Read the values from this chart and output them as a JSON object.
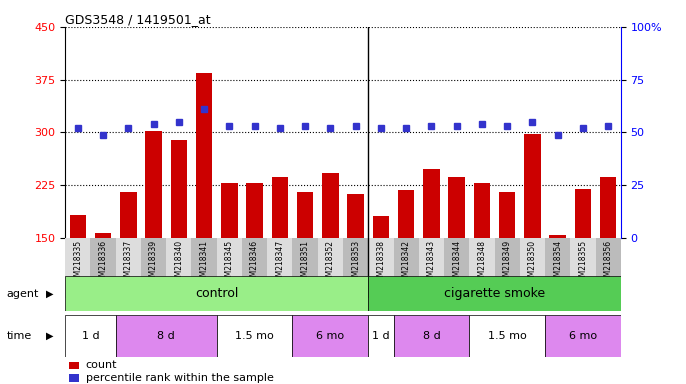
{
  "title": "GDS3548 / 1419501_at",
  "samples": [
    "GSM218335",
    "GSM218336",
    "GSM218337",
    "GSM218339",
    "GSM218340",
    "GSM218341",
    "GSM218345",
    "GSM218346",
    "GSM218347",
    "GSM218351",
    "GSM218352",
    "GSM218353",
    "GSM218338",
    "GSM218342",
    "GSM218343",
    "GSM218344",
    "GSM218348",
    "GSM218349",
    "GSM218350",
    "GSM218354",
    "GSM218355",
    "GSM218356"
  ],
  "counts": [
    183,
    157,
    215,
    302,
    290,
    385,
    228,
    228,
    237,
    215,
    243,
    212,
    182,
    218,
    248,
    237,
    228,
    216,
    298,
    155,
    220,
    237
  ],
  "percentile_ranks": [
    52,
    49,
    52,
    54,
    55,
    61,
    53,
    53,
    52,
    53,
    52,
    53,
    52,
    52,
    53,
    53,
    54,
    53,
    55,
    49,
    52,
    53
  ],
  "ylim_left": [
    150,
    450
  ],
  "ylim_right": [
    0,
    100
  ],
  "yticks_left": [
    150,
    225,
    300,
    375,
    450
  ],
  "yticks_right": [
    0,
    25,
    50,
    75,
    100
  ],
  "bar_color": "#CC0000",
  "dot_color": "#3333CC",
  "agent_control_color": "#99EE88",
  "agent_smoke_color": "#55CC55",
  "time_bg_color": "#DD88EE",
  "time_white_color": "#FFFFFF",
  "chart_bg": "#FFFFFF",
  "xtick_bg_even": "#DDDDDD",
  "xtick_bg_odd": "#BBBBBB",
  "agent_label": "agent",
  "time_label": "time",
  "legend_count": "count",
  "legend_pct": "percentile rank within the sample",
  "control_label": "control",
  "smoke_label": "cigarette smoke",
  "time_segments": [
    {
      "label": "1 d",
      "start": 0,
      "end": 2,
      "color": "#FFFFFF"
    },
    {
      "label": "8 d",
      "start": 2,
      "end": 6,
      "color": "#DD88EE"
    },
    {
      "label": "1.5 mo",
      "start": 6,
      "end": 9,
      "color": "#FFFFFF"
    },
    {
      "label": "6 mo",
      "start": 9,
      "end": 12,
      "color": "#DD88EE"
    },
    {
      "label": "1 d",
      "start": 12,
      "end": 13,
      "color": "#FFFFFF"
    },
    {
      "label": "8 d",
      "start": 13,
      "end": 16,
      "color": "#DD88EE"
    },
    {
      "label": "1.5 mo",
      "start": 16,
      "end": 19,
      "color": "#FFFFFF"
    },
    {
      "label": "6 mo",
      "start": 19,
      "end": 22,
      "color": "#DD88EE"
    }
  ],
  "n_total": 22,
  "n_control": 12,
  "n_smoke": 10,
  "sep_at": 11.5
}
